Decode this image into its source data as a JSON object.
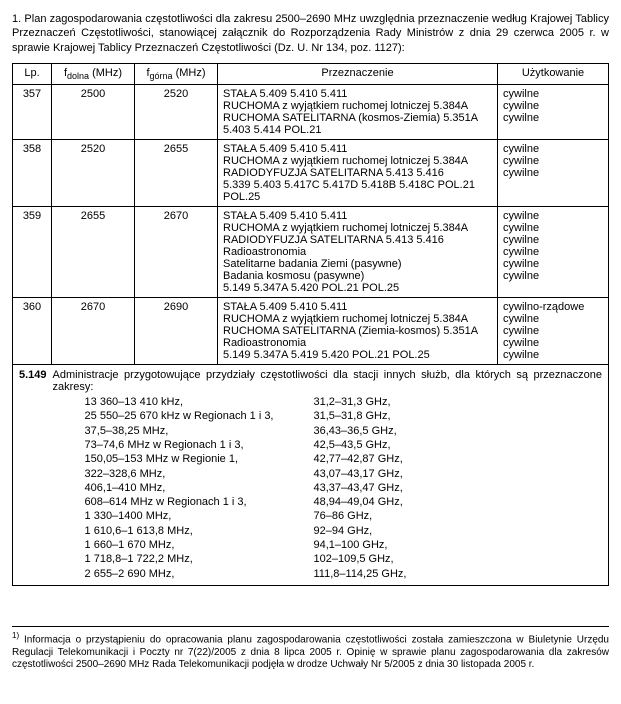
{
  "intro": "1. Plan zagospodarowania częstotliwości dla zakresu 2500–2690 MHz uwzględnia przeznaczenie według Krajowej Tablicy Przeznaczeń Częstotliwości, stanowiącej załącznik do Rozporządzenia Rady Ministrów z dnia 29 czerwca 2005 r. w sprawie Krajowej Tablicy Przeznaczeń Częstotliwości (Dz. U. Nr 134, poz. 1127):",
  "headers": {
    "lp": "Lp.",
    "fdolna_prefix": "f",
    "fdolna_sub": "dolna",
    "fdolna_unit": " (MHz)",
    "fgorna_prefix": "f",
    "fgorna_sub": "górna",
    "fgorna_unit": " (MHz)",
    "przeznaczenie": "Przeznaczenie",
    "uzytkowanie": "Użytkowanie"
  },
  "rows": [
    {
      "lp": "357",
      "fd": "2500",
      "fg": "2520",
      "cell": "STAŁA 5.409 5.410 5.411\nRUCHOMA z wyjątkiem ruchomej lotniczej 5.384A\nRUCHOMA SATELITARNA (kosmos-Ziemia) 5.351A 5.403 5.414 POL.21",
      "use": "cywilne\ncywilne\ncywilne"
    },
    {
      "lp": "358",
      "fd": "2520",
      "fg": "2655",
      "cell": "STAŁA 5.409 5.410 5.411\nRUCHOMA z wyjątkiem ruchomej lotniczej 5.384A\nRADIODYFUZJA SATELITARNA 5.413 5.416\n5.339 5.403 5.417C 5.417D 5.418B 5.418C POL.21 POL.25",
      "use": "cywilne\ncywilne\ncywilne"
    },
    {
      "lp": "359",
      "fd": "2655",
      "fg": "2670",
      "cell": "STAŁA 5.409 5.410 5.411\nRUCHOMA z wyjątkiem ruchomej lotniczej 5.384A\nRADIODYFUZJA SATELITARNA 5.413 5.416\nRadioastronomia\nSatelitarne badania Ziemi (pasywne)\nBadania kosmosu (pasywne)\n5.149 5.347A 5.420 POL.21 POL.25",
      "use": "cywilne\ncywilne\ncywilne\ncywilne\ncywilne\ncywilne"
    },
    {
      "lp": "360",
      "fd": "2670",
      "fg": "2690",
      "cell": "STAŁA 5.409 5.410 5.411\nRUCHOMA z wyjątkiem ruchomej lotniczej 5.384A\nRUCHOMA SATELITARNA (Ziemia-kosmos) 5.351A\nRadioastronomia\n5.149 5.347A 5.419 5.420 POL.21 POL.25",
      "use": "cywilno-rządowe\ncywilne\ncywilne\ncywilne\ncywilne"
    }
  ],
  "note": {
    "num": "5.149",
    "lead": "Administracje przygotowujące przydziały częstotliwości dla stacji innych służb, dla których są przeznaczone zakresy:",
    "left": [
      "13 360–13 410 kHz,",
      "25 550–25 670 kHz w Regionach 1 i 3,",
      "37,5–38,25 MHz,",
      "73–74,6 MHz w Regionach 1 i 3,",
      "150,05–153 MHz w Regionie 1,",
      "322–328,6 MHz,",
      "406,1–410 MHz,",
      "608–614 MHz w Regionach 1 i 3,",
      "1 330–1400 MHz,",
      "1 610,6–1 613,8 MHz,",
      "1 660–1 670 MHz,",
      "1 718,8–1 722,2 MHz,",
      "2 655–2 690 MHz,"
    ],
    "right": [
      "31,2–31,3 GHz,",
      "31,5–31,8 GHz,",
      "36,43–36,5 GHz,",
      "42,5–43,5 GHz,",
      "42,77–42,87 GHz,",
      "43,07–43,17 GHz,",
      "43,37–43,47 GHz,",
      "48,94–49,04 GHz,",
      "76–86 GHz,",
      "92–94 GHz,",
      "94,1–100 GHz,",
      "102–109,5 GHz,",
      "111,8–114,25 GHz,"
    ]
  },
  "footnote_marker": "1)",
  "footnote": "Informacja o przystąpieniu do opracowania planu zagospodarowania częstotliwości została zamieszczona w Biuletynie Urzędu Regulacji Telekomunikacji i Poczty nr 7(22)/2005 z dnia 8 lipca 2005 r. Opinię w sprawie planu zagospodarowania dla zakresów częstotliwości 2500–2690 MHz Rada Telekomunikacji podjęła w drodze Uchwały Nr 5/2005 z dnia 30 listopada 2005 r."
}
